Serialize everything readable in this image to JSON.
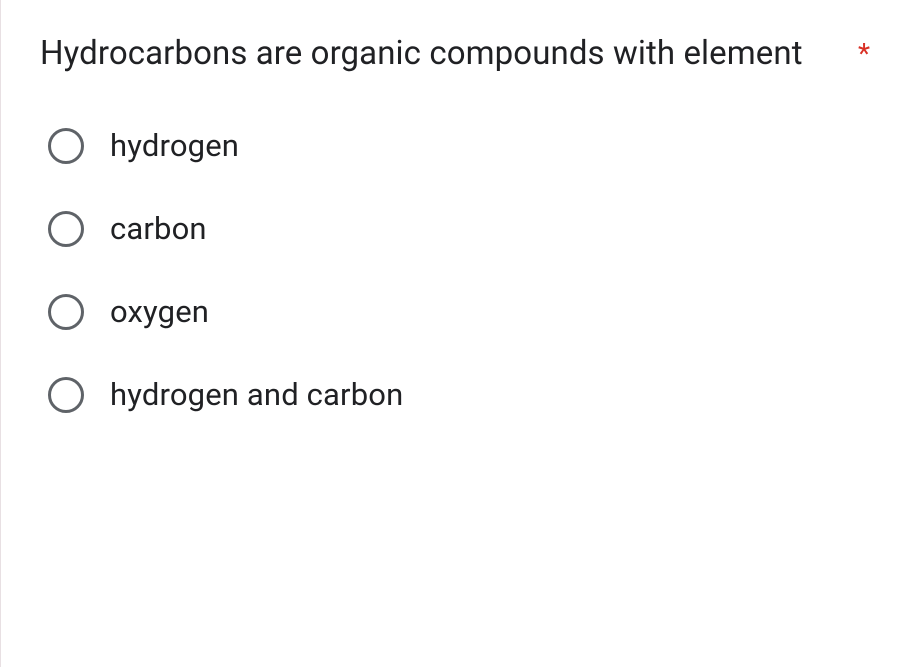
{
  "question": {
    "text": "Hydrocarbons are organic compounds with element",
    "required": true,
    "required_marker": "*",
    "options": [
      {
        "label": "hydrogen"
      },
      {
        "label": "carbon"
      },
      {
        "label": "oxygen"
      },
      {
        "label": "hydrogen and carbon"
      }
    ]
  },
  "colors": {
    "text": "#202124",
    "radio_border": "#5f6368",
    "required": "#d93025",
    "background": "#ffffff",
    "left_border": "#e8e0e3"
  }
}
